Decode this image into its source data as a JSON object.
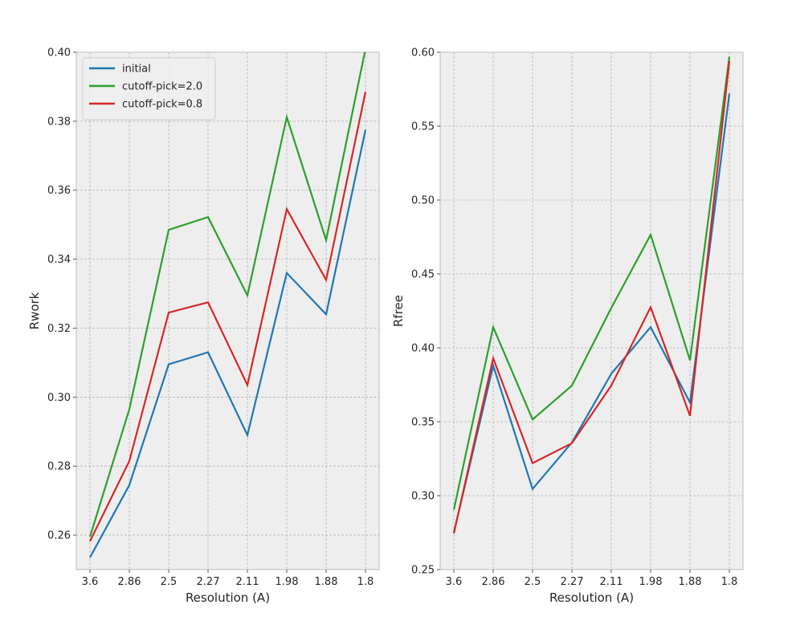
{
  "chart_data": [
    {
      "type": "line",
      "title": "",
      "xlabel": "Resolution (A)",
      "ylabel": "Rwork",
      "categories": [
        "3.6",
        "2.86",
        "2.5",
        "2.27",
        "2.11",
        "1.98",
        "1.88",
        "1.8"
      ],
      "ylim": [
        0.25,
        0.4
      ],
      "yticks": [
        "0.26",
        "0.28",
        "0.30",
        "0.32",
        "0.34",
        "0.36",
        "0.38",
        "0.40"
      ],
      "grid": true,
      "legend_position": "top-left",
      "series": [
        {
          "name": "initial",
          "color": "#1f77b4",
          "values": [
            0.2535,
            0.2745,
            0.3095,
            0.313,
            0.289,
            0.336,
            0.324,
            0.3775
          ]
        },
        {
          "name": "cutoff-pick=2.0",
          "color": "#2ca02c",
          "values": [
            0.2595,
            0.2965,
            0.3485,
            0.3522,
            0.3295,
            0.3812,
            0.3455,
            0.401
          ]
        },
        {
          "name": "cutoff-pick=0.8",
          "color": "#d62728",
          "values": [
            0.2582,
            0.2815,
            0.3245,
            0.3275,
            0.3035,
            0.3545,
            0.334,
            0.3885
          ]
        }
      ]
    },
    {
      "type": "line",
      "title": "",
      "xlabel": "Resolution (A)",
      "ylabel": "Rfree",
      "categories": [
        "3.6",
        "2.86",
        "2.5",
        "2.27",
        "2.11",
        "1.98",
        "1.88",
        "1.8"
      ],
      "ylim": [
        0.25,
        0.6
      ],
      "yticks": [
        "0.25",
        "0.30",
        "0.35",
        "0.40",
        "0.45",
        "0.50",
        "0.55",
        "0.60"
      ],
      "grid": true,
      "series": [
        {
          "name": "initial",
          "color": "#1f77b4",
          "values": [
            0.275,
            0.388,
            0.3045,
            0.336,
            0.3825,
            0.414,
            0.363,
            0.572
          ]
        },
        {
          "name": "cutoff-pick=2.0",
          "color": "#2ca02c",
          "values": [
            0.2905,
            0.414,
            0.3515,
            0.3745,
            0.427,
            0.4765,
            0.3915,
            0.597
          ]
        },
        {
          "name": "cutoff-pick=0.8",
          "color": "#d62728",
          "values": [
            0.2745,
            0.393,
            0.322,
            0.3355,
            0.3745,
            0.4275,
            0.354,
            0.594
          ]
        }
      ]
    }
  ]
}
